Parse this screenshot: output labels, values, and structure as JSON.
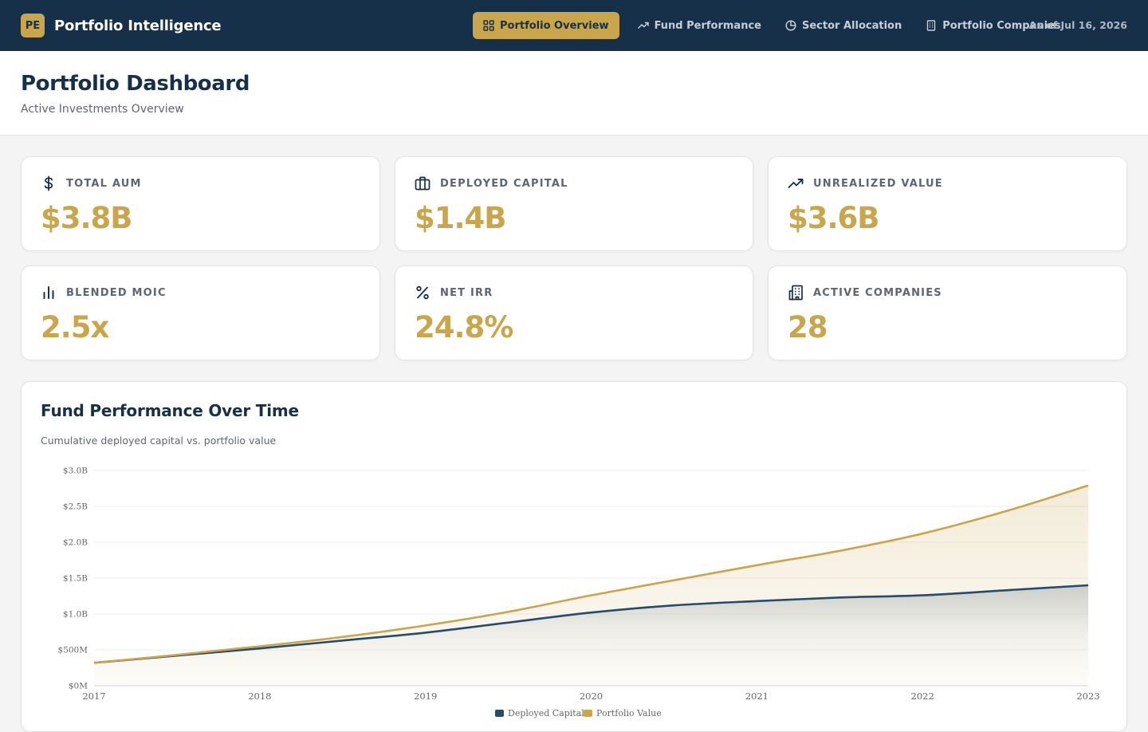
{
  "app": {
    "logo_text": "PE",
    "title": "Portfolio Intelligence",
    "as_of": "As of Jul 16, 2026",
    "accent_color": "#c9a54c",
    "navy_color": "#17304a"
  },
  "nav": {
    "items": [
      {
        "label": "Portfolio Overview",
        "icon": "grid-icon",
        "active": true
      },
      {
        "label": "Fund Performance",
        "icon": "trending-up-icon",
        "active": false
      },
      {
        "label": "Sector Allocation",
        "icon": "pie-chart-icon",
        "active": false
      },
      {
        "label": "Portfolio Companies",
        "icon": "building-icon",
        "active": false
      }
    ]
  },
  "header": {
    "title": "Portfolio Dashboard",
    "subtitle": "Active Investments Overview"
  },
  "kpis": [
    {
      "label": "Total AUM",
      "value": "$3.8B",
      "icon": "dollar-icon"
    },
    {
      "label": "Deployed Capital",
      "value": "$1.4B",
      "icon": "briefcase-icon"
    },
    {
      "label": "Unrealized Value",
      "value": "$3.6B",
      "icon": "trending-up-icon"
    },
    {
      "label": "Blended MOIC",
      "value": "2.5x",
      "icon": "bar-chart-icon"
    },
    {
      "label": "Net IRR",
      "value": "24.8%",
      "icon": "percent-icon"
    },
    {
      "label": "Active Companies",
      "value": "28",
      "icon": "building-icon"
    }
  ],
  "chart_panel": {
    "title": "Fund Performance Over Time",
    "subtitle": "Cumulative deployed capital vs. portfolio value"
  },
  "chart_data": {
    "type": "area",
    "x": [
      2017,
      2017.5,
      2018,
      2018.5,
      2019,
      2019.5,
      2020,
      2020.5,
      2021,
      2021.5,
      2022,
      2022.5,
      2023
    ],
    "x_ticks": [
      "2017",
      "2018",
      "2019",
      "2020",
      "2021",
      "2022",
      "2023"
    ],
    "y_ticks": [
      "$0M",
      "$500M",
      "$1.0B",
      "$1.5B",
      "$2.0B",
      "$2.5B",
      "$3.0B"
    ],
    "ylim": [
      0,
      3.0
    ],
    "y_unit": "billions USD",
    "grid": true,
    "legend_position": "bottom-center",
    "series": [
      {
        "name": "Deployed Capital",
        "color": "#274b6d",
        "values": [
          0.32,
          0.42,
          0.52,
          0.63,
          0.74,
          0.88,
          1.02,
          1.12,
          1.18,
          1.23,
          1.26,
          1.33,
          1.4
        ]
      },
      {
        "name": "Portfolio Value",
        "color": "#c9a54c",
        "values": [
          0.32,
          0.43,
          0.55,
          0.68,
          0.84,
          1.03,
          1.26,
          1.47,
          1.68,
          1.88,
          2.12,
          2.43,
          2.79
        ]
      }
    ]
  }
}
